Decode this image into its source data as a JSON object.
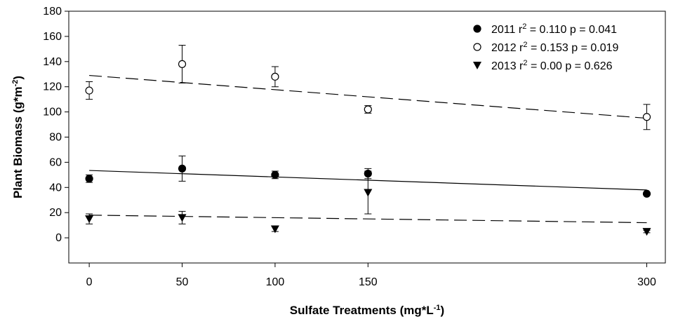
{
  "chart_data": {
    "type": "scatter",
    "x_label_parts": [
      "Sulfate Treatments (mg*L",
      "-1",
      ")"
    ],
    "y_label_parts": [
      "Plant Biomass (g*m",
      "-2",
      ")"
    ],
    "xlim": [
      -11,
      310
    ],
    "xticks": [
      0,
      50,
      100,
      150,
      300
    ],
    "ylim": [
      -20,
      180
    ],
    "yticks": [
      0,
      20,
      40,
      60,
      80,
      100,
      120,
      140,
      160,
      180
    ],
    "x": [
      0,
      50,
      100,
      150,
      300
    ],
    "series": [
      {
        "name": "2011",
        "label_parts": [
          "r",
          "2",
          " = 0.110  p = 0.041"
        ],
        "marker": "circle-filled",
        "color": "#000000",
        "values": [
          47,
          55,
          50,
          51,
          35
        ],
        "errors": [
          3,
          10,
          3,
          4,
          1
        ],
        "trend": {
          "x": [
            0,
            300
          ],
          "values": [
            53.5,
            38
          ],
          "style": "solid"
        }
      },
      {
        "name": "2012",
        "label_parts": [
          "r",
          "2",
          " = 0.153  p = 0.019"
        ],
        "marker": "circle-open",
        "color": "#000000",
        "values": [
          117,
          138,
          128,
          102,
          96
        ],
        "errors": [
          7,
          15,
          8,
          3,
          10
        ],
        "trend": {
          "x": [
            0,
            300
          ],
          "values": [
            129,
            95
          ],
          "style": "dashed"
        }
      },
      {
        "name": "2013",
        "label_parts": [
          "r",
          "2",
          " = 0.00  p = 0.626"
        ],
        "marker": "triangle-down",
        "color": "#000000",
        "values": [
          15,
          16,
          7,
          36,
          5
        ],
        "errors": [
          4,
          5,
          2,
          17,
          1
        ],
        "trend": {
          "x": [
            0,
            300
          ],
          "values": [
            18,
            12
          ],
          "style": "dashed"
        }
      }
    ]
  }
}
